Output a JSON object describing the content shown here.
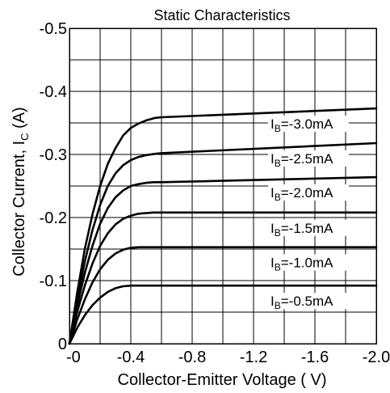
{
  "chart_data": {
    "type": "line",
    "title": "Static Characteristics",
    "xlabel": {
      "main": "Collector-Emitter Voltage ( V)"
    },
    "ylabel": {
      "prefix": "Collector Current, I",
      "sub": "C",
      "suffix": " (A)"
    },
    "xlim": [
      0,
      -2.0
    ],
    "ylim": [
      0,
      -0.5
    ],
    "x_ticks": [
      {
        "value": 0,
        "label": "-0"
      },
      {
        "value": -0.4,
        "label": "-0.4"
      },
      {
        "value": -0.8,
        "label": "-0.8"
      },
      {
        "value": -1.2,
        "label": "-1.2"
      },
      {
        "value": -1.6,
        "label": "-1.6"
      },
      {
        "value": -2.0,
        "label": "-2.0"
      }
    ],
    "y_ticks": [
      {
        "value": 0,
        "label": "0"
      },
      {
        "value": -0.1,
        "label": "-0.1"
      },
      {
        "value": -0.2,
        "label": "-0.2"
      },
      {
        "value": -0.3,
        "label": "-0.3"
      },
      {
        "value": -0.4,
        "label": "-0.4"
      },
      {
        "value": -0.5,
        "label": "-0.5"
      }
    ],
    "x_grid_step": -0.2,
    "y_grid_step": -0.05,
    "grid": true,
    "series": [
      {
        "label_prefix": "I",
        "label_sub": "B",
        "label_value": "=-3.0mA",
        "points": [
          [
            0,
            0
          ],
          [
            -0.05,
            -0.08
          ],
          [
            -0.1,
            -0.15
          ],
          [
            -0.15,
            -0.205
          ],
          [
            -0.2,
            -0.25
          ],
          [
            -0.25,
            -0.285
          ],
          [
            -0.3,
            -0.31
          ],
          [
            -0.35,
            -0.33
          ],
          [
            -0.4,
            -0.342
          ],
          [
            -0.45,
            -0.349
          ],
          [
            -0.5,
            -0.354
          ],
          [
            -0.56,
            -0.358
          ],
          [
            -0.6,
            -0.359
          ],
          [
            -2.0,
            -0.373
          ]
        ]
      },
      {
        "label_prefix": "I",
        "label_sub": "B",
        "label_value": "=-2.5mA",
        "points": [
          [
            0,
            0
          ],
          [
            -0.05,
            -0.07
          ],
          [
            -0.1,
            -0.13
          ],
          [
            -0.15,
            -0.18
          ],
          [
            -0.2,
            -0.22
          ],
          [
            -0.25,
            -0.25
          ],
          [
            -0.3,
            -0.27
          ],
          [
            -0.35,
            -0.283
          ],
          [
            -0.4,
            -0.291
          ],
          [
            -0.45,
            -0.296
          ],
          [
            -0.5,
            -0.299
          ],
          [
            -0.56,
            -0.301
          ],
          [
            -0.6,
            -0.302
          ],
          [
            -2.0,
            -0.318
          ]
        ]
      },
      {
        "label_prefix": "I",
        "label_sub": "B",
        "label_value": "=-2.0mA",
        "points": [
          [
            0,
            0
          ],
          [
            -0.05,
            -0.06
          ],
          [
            -0.1,
            -0.112
          ],
          [
            -0.15,
            -0.155
          ],
          [
            -0.2,
            -0.19
          ],
          [
            -0.25,
            -0.215
          ],
          [
            -0.3,
            -0.232
          ],
          [
            -0.35,
            -0.243
          ],
          [
            -0.4,
            -0.25
          ],
          [
            -0.45,
            -0.253
          ],
          [
            -0.5,
            -0.255
          ],
          [
            -0.55,
            -0.256
          ],
          [
            -0.6,
            -0.256
          ],
          [
            -2.0,
            -0.264
          ]
        ]
      },
      {
        "label_prefix": "I",
        "label_sub": "B",
        "label_value": "=-1.5mA",
        "points": [
          [
            0,
            0
          ],
          [
            -0.05,
            -0.05
          ],
          [
            -0.1,
            -0.092
          ],
          [
            -0.15,
            -0.127
          ],
          [
            -0.2,
            -0.155
          ],
          [
            -0.25,
            -0.175
          ],
          [
            -0.3,
            -0.189
          ],
          [
            -0.35,
            -0.198
          ],
          [
            -0.4,
            -0.203
          ],
          [
            -0.45,
            -0.206
          ],
          [
            -0.5,
            -0.207
          ],
          [
            -0.55,
            -0.208
          ],
          [
            -0.6,
            -0.208
          ],
          [
            -2.0,
            -0.208
          ]
        ]
      },
      {
        "label_prefix": "I",
        "label_sub": "B",
        "label_value": "=-1.0mA",
        "points": [
          [
            0,
            0
          ],
          [
            -0.05,
            -0.038
          ],
          [
            -0.1,
            -0.07
          ],
          [
            -0.15,
            -0.097
          ],
          [
            -0.2,
            -0.118
          ],
          [
            -0.25,
            -0.133
          ],
          [
            -0.3,
            -0.143
          ],
          [
            -0.35,
            -0.149
          ],
          [
            -0.4,
            -0.152
          ],
          [
            -0.45,
            -0.153
          ],
          [
            -0.5,
            -0.153
          ],
          [
            -0.55,
            -0.153
          ],
          [
            -2.0,
            -0.153
          ]
        ]
      },
      {
        "label_prefix": "I",
        "label_sub": "B",
        "label_value": "=-0.5mA",
        "points": [
          [
            0,
            0
          ],
          [
            -0.05,
            -0.025
          ],
          [
            -0.1,
            -0.045
          ],
          [
            -0.15,
            -0.061
          ],
          [
            -0.2,
            -0.073
          ],
          [
            -0.25,
            -0.082
          ],
          [
            -0.3,
            -0.088
          ],
          [
            -0.35,
            -0.091
          ],
          [
            -0.4,
            -0.092
          ],
          [
            -0.45,
            -0.092
          ],
          [
            -2.0,
            -0.092
          ]
        ]
      }
    ]
  }
}
